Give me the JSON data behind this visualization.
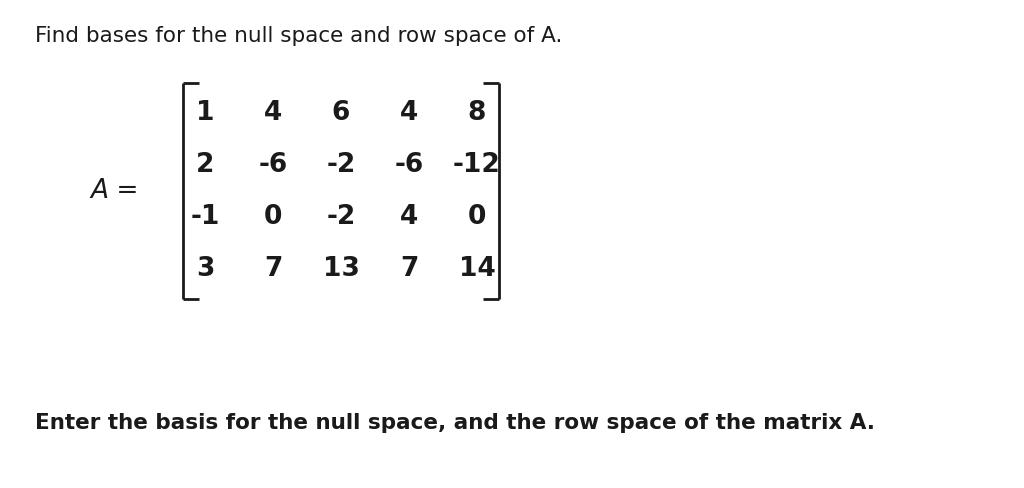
{
  "title_text": "Find bases for the null space and row space of A.",
  "label_text": "A =",
  "matrix": [
    [
      "1",
      "4",
      "6",
      "4",
      "8"
    ],
    [
      "2",
      "-6",
      "-2",
      "-6",
      "-12"
    ],
    [
      "-1",
      "0",
      "-2",
      "4",
      "0"
    ],
    [
      "3",
      "7",
      "13",
      "7",
      "14"
    ]
  ],
  "footer_text": "Enter the basis for the null space, and the row space of the matrix A.",
  "bg_color": "#ffffff",
  "text_color": "#1a1a1a",
  "font_size_title": 15.5,
  "font_size_matrix": 19,
  "font_size_label": 19,
  "font_size_footer": 15.5,
  "fig_width": 10.24,
  "fig_height": 4.88,
  "dpi": 100
}
